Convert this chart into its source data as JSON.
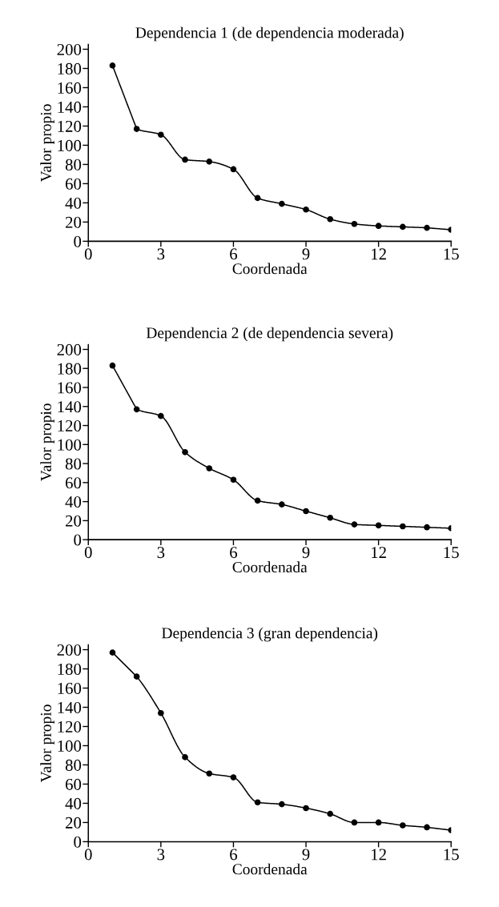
{
  "chart_data": [
    {
      "type": "line",
      "title": "Dependencia 1 (de dependencia moderada)",
      "xlabel": "Coordenada",
      "ylabel": "Valor propio",
      "x": [
        1,
        2,
        3,
        4,
        5,
        6,
        7,
        8,
        9,
        10,
        11,
        12,
        13,
        14,
        15
      ],
      "series": [
        {
          "color": "#000000",
          "values": [
            183,
            117,
            111,
            85,
            83,
            75,
            45,
            39,
            33,
            23,
            18,
            16,
            15,
            14,
            12
          ]
        }
      ],
      "xlim": [
        0,
        15
      ],
      "xticks": [
        0,
        3,
        6,
        9,
        12,
        15
      ],
      "ylim": [
        0,
        205
      ],
      "yticks": [
        0,
        20,
        40,
        60,
        80,
        100,
        120,
        140,
        160,
        180,
        200
      ],
      "marker": "circle",
      "line_style": "solid",
      "grid": false,
      "legend": false
    },
    {
      "type": "line",
      "title": "Dependencia 2 (de dependencia severa)",
      "xlabel": "Coordenada",
      "ylabel": "Valor propio",
      "x": [
        1,
        2,
        3,
        4,
        5,
        6,
        7,
        8,
        9,
        10,
        11,
        12,
        13,
        14,
        15
      ],
      "series": [
        {
          "color": "#000000",
          "values": [
            183,
            137,
            130,
            92,
            75,
            63,
            41,
            37,
            30,
            23,
            16,
            15,
            14,
            13,
            12
          ]
        }
      ],
      "xlim": [
        0,
        15
      ],
      "xticks": [
        0,
        3,
        6,
        9,
        12,
        15
      ],
      "ylim": [
        0,
        205
      ],
      "yticks": [
        0,
        20,
        40,
        60,
        80,
        100,
        120,
        140,
        160,
        180,
        200
      ],
      "marker": "circle",
      "line_style": "solid",
      "grid": false,
      "legend": false
    },
    {
      "type": "line",
      "title": "Dependencia 3 (gran dependencia)",
      "xlabel": "Coordenada",
      "ylabel": "Valor propio",
      "x": [
        1,
        2,
        3,
        4,
        5,
        6,
        7,
        8,
        9,
        10,
        11,
        12,
        13,
        14,
        15
      ],
      "series": [
        {
          "color": "#000000",
          "values": [
            197,
            172,
            134,
            88,
            71,
            67,
            41,
            39,
            35,
            29,
            20,
            20,
            17,
            15,
            12
          ]
        }
      ],
      "xlim": [
        0,
        15
      ],
      "xticks": [
        0,
        3,
        6,
        9,
        12,
        15
      ],
      "ylim": [
        0,
        205
      ],
      "yticks": [
        0,
        20,
        40,
        60,
        80,
        100,
        120,
        140,
        160,
        180,
        200
      ],
      "marker": "circle",
      "line_style": "solid",
      "grid": false,
      "legend": false
    }
  ]
}
